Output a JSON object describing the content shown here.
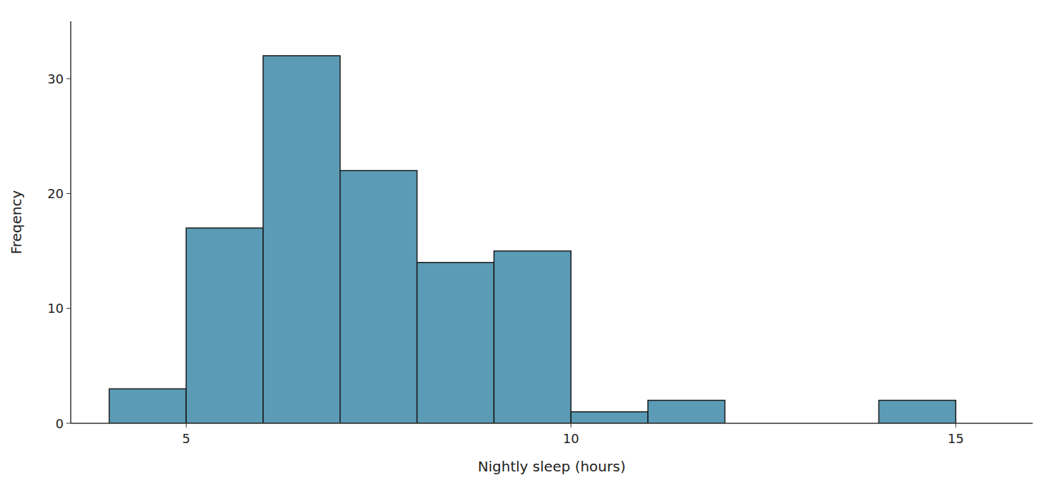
{
  "chart_data": {
    "type": "histogram",
    "bins": [
      4,
      5,
      6,
      7,
      8,
      9,
      10,
      11,
      12,
      13,
      14,
      15
    ],
    "values": [
      3,
      17,
      32,
      22,
      14,
      15,
      1,
      2,
      0,
      0,
      2
    ],
    "color": "#5b9bb5",
    "xlabel": "Nightly sleep (hours)",
    "ylabel": "Freqency",
    "xlim": [
      3.5,
      16
    ],
    "ylim": [
      0,
      35
    ],
    "xticks": [
      5,
      10,
      15
    ],
    "yticks": [
      0,
      10,
      20,
      30
    ],
    "grid": false
  }
}
